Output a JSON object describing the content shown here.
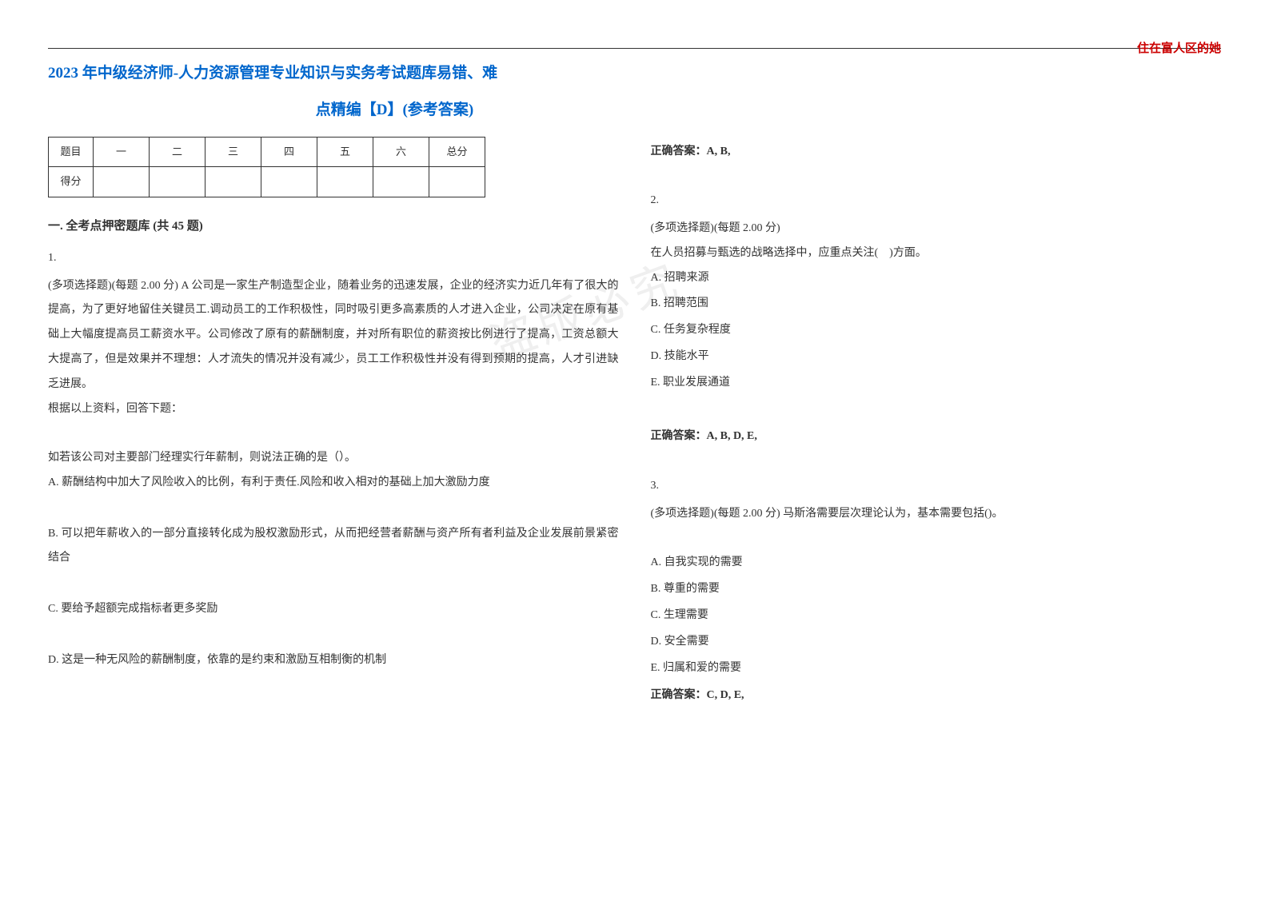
{
  "header": {
    "corner_text": "住在富人区的她",
    "title_line1": "2023 年中级经济师-人力资源管理专业知识与实务考试题库易错、难",
    "title_line2": "点精编【D】(参考答案)"
  },
  "score_table": {
    "row1": [
      "题目",
      "一",
      "二",
      "三",
      "四",
      "五",
      "六",
      "总分"
    ],
    "row2_label": "得分"
  },
  "section1": {
    "header": "一. 全考点押密题库 (共 45 题)"
  },
  "q1": {
    "num": "1.",
    "stem": "(多项选择题)(每题 2.00 分) A 公司是一家生产制造型企业，随着业务的迅速发展，企业的经济实力近几年有了很大的提高，为了更好地留住关键员工.调动员工的工作积极性，同时吸引更多高素质的人才进入企业，公司决定在原有基础上大幅度提高员工薪资水平。公司修改了原有的薪酬制度，并对所有职位的薪资按比例进行了提高，工资总额大大提高了，但是效果并不理想：人才流失的情况并没有减少，员工工作积极性并没有得到预期的提高，人才引进缺乏进展。",
    "prompt": "根据以上资料，回答下题：",
    "sub_q": "如若该公司对主要部门经理实行年薪制，则说法正确的是（）。",
    "optA": "A. 薪酬结构中加大了风险收入的比例，有利于责任.风险和收入相对的基础上加大激励力度",
    "optB": "B. 可以把年薪收入的一部分直接转化成为股权激励形式，从而把经营者薪酬与资产所有者利益及企业发展前景紧密结合",
    "optC": "C. 要给予超额完成指标者更多奖励",
    "optD": "D. 这是一种无风险的薪酬制度，依靠的是约束和激励互相制衡的机制",
    "answer": "正确答案：A, B,"
  },
  "q2": {
    "num": "2.",
    "stem": "(多项选择题)(每题 2.00 分)",
    "question": "在人员招募与甄选的战略选择中，应重点关注(　)方面。",
    "optA": "A. 招聘来源",
    "optB": "B. 招聘范围",
    "optC": "C. 任务复杂程度",
    "optD": "D. 技能水平",
    "optE": "E. 职业发展通道",
    "answer": "正确答案：A, B, D, E,"
  },
  "q3": {
    "num": "3.",
    "stem": "(多项选择题)(每题 2.00 分) 马斯洛需要层次理论认为，基本需要包括()。",
    "optA": "A. 自我实现的需要",
    "optB": "B. 尊重的需要",
    "optC": "C. 生理需要",
    "optD": "D. 安全需要",
    "optE": "E. 归属和爱的需要",
    "answer": "正确答案：C, D, E,"
  },
  "watermark_overlay": "盗版必究",
  "colors": {
    "title_color": "#0066cc",
    "corner_color": "#cc0000",
    "text_color": "#333333",
    "border_color": "#333333",
    "background": "#ffffff"
  }
}
